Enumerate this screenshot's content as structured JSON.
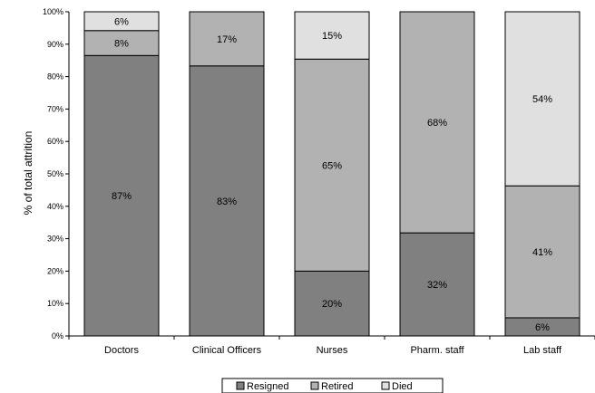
{
  "chart_data": {
    "type": "bar",
    "stacked": true,
    "title": "",
    "xlabel": "",
    "ylabel": "% of total attrition",
    "ylim": [
      0,
      100
    ],
    "yticks": [
      "0%",
      "10%",
      "20%",
      "30%",
      "40%",
      "50%",
      "60%",
      "70%",
      "80%",
      "90%",
      "100%"
    ],
    "categories": [
      "Doctors",
      "Clinical Officers",
      "Nurses",
      "Pharm. staff",
      "Lab staff"
    ],
    "series": [
      {
        "name": "Resigned",
        "color": "#808080",
        "values": [
          86.5,
          83.3,
          20,
          31.8,
          5.6
        ],
        "labels": [
          "87%",
          "83%",
          "20%",
          "32%",
          "6%"
        ]
      },
      {
        "name": "Retired",
        "color": "#b2b2b2",
        "values": [
          7.7,
          16.7,
          65.4,
          68.2,
          40.7
        ],
        "labels": [
          "8%",
          "17%",
          "65%",
          "68%",
          "41%"
        ]
      },
      {
        "name": "Died",
        "color": "#e0e0e0",
        "values": [
          5.8,
          0,
          14.6,
          0,
          53.7
        ],
        "labels": [
          "6%",
          "",
          "15%",
          "",
          "54%"
        ]
      }
    ],
    "grid": false,
    "legend": "bottom"
  }
}
